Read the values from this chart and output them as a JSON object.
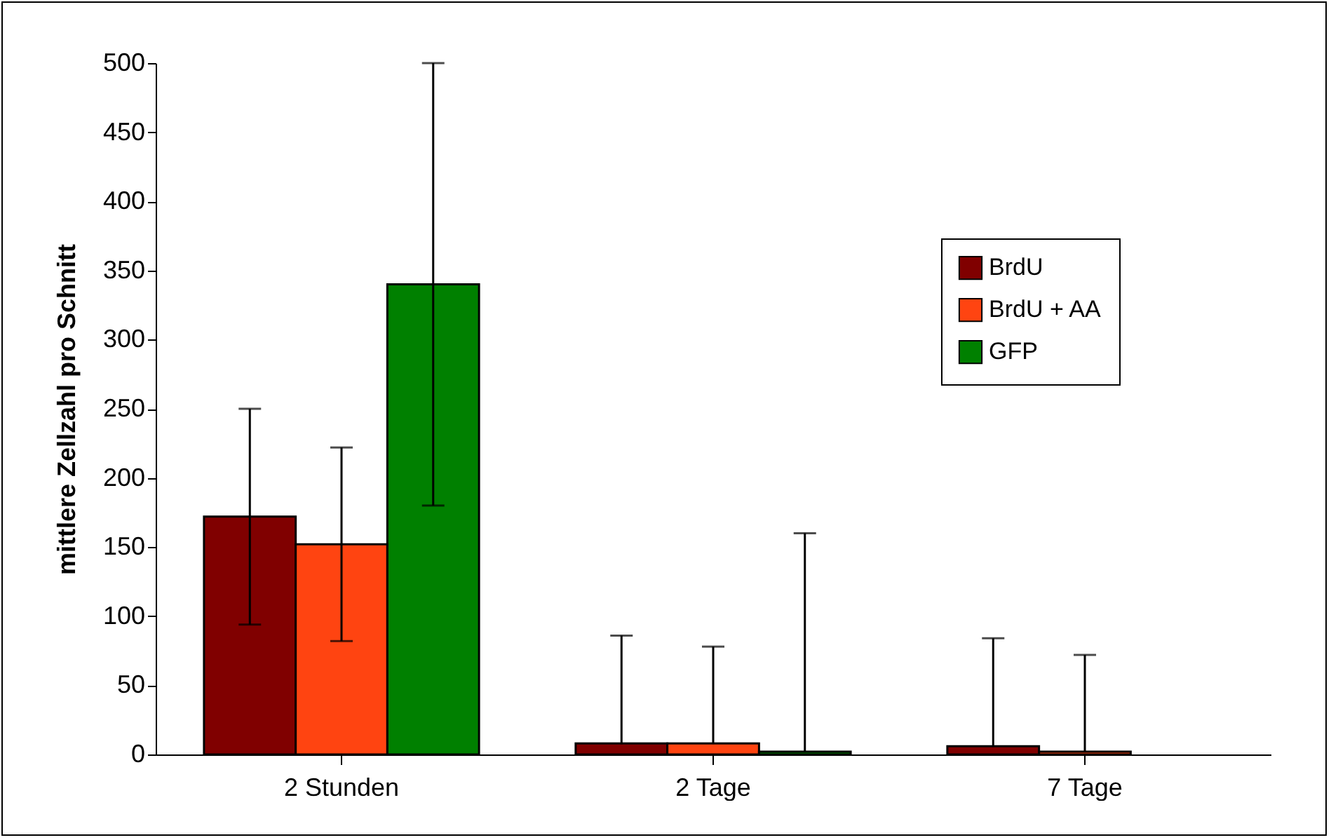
{
  "chart_data": {
    "type": "bar",
    "ylabel": "mittlere Zellzahl pro Schnitt",
    "categories": [
      "2 Stunden",
      "2 Tage",
      "7 Tage"
    ],
    "series": [
      {
        "name": "BrdU",
        "color": "#800000",
        "values": [
          172,
          8,
          6
        ],
        "errors": [
          [
            94,
            250
          ],
          [
            8,
            86
          ],
          [
            6,
            84
          ]
        ]
      },
      {
        "name": "BrdU + AA",
        "color": "#ff4411",
        "values": [
          152,
          8,
          2
        ],
        "errors": [
          [
            82,
            222
          ],
          [
            8,
            78
          ],
          [
            2,
            72
          ]
        ]
      },
      {
        "name": "GFP",
        "color": "#008000",
        "values": [
          340,
          2,
          null
        ],
        "errors": [
          [
            180,
            500
          ],
          [
            2,
            160
          ],
          null
        ]
      }
    ],
    "ylim": [
      0,
      500
    ],
    "yticks": [
      0,
      50,
      100,
      150,
      200,
      250,
      300,
      350,
      400,
      450,
      500
    ],
    "legend": "right",
    "grid": false
  }
}
